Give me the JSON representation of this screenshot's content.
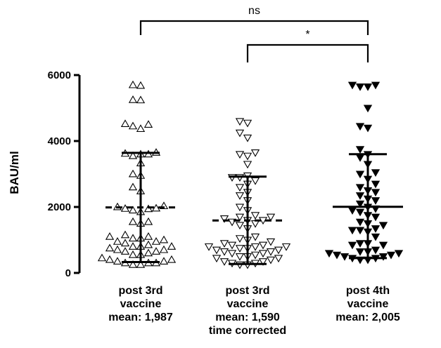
{
  "chart_data": {
    "type": "scatter",
    "ylabel": "BAU/ml",
    "ylim": [
      0,
      6000
    ],
    "yticks": [
      "0",
      "2000",
      "4000",
      "6000"
    ],
    "grid": false,
    "categories": [
      {
        "lines": [
          "post 3rd",
          "vaccine",
          "mean: 1,987"
        ],
        "marker": "triangle-up-open",
        "mean": 1987,
        "mean_style": "dashed",
        "whisker_low": 330,
        "whisker_high": 3640,
        "points": [
          5700,
          5680,
          5250,
          5240,
          4520,
          4500,
          4450,
          4370,
          3650,
          3620,
          3600,
          3600,
          3550,
          3330,
          3000,
          2950,
          2600,
          2480,
          2030,
          2000,
          1960,
          1950,
          1940,
          1900,
          1850,
          1550,
          1550,
          1500,
          1150,
          1100,
          1100,
          1050,
          1050,
          1000,
          950,
          950,
          900,
          850,
          800,
          800,
          800,
          750,
          700,
          700,
          650,
          650,
          600,
          550,
          550,
          450,
          400,
          400,
          350,
          350,
          300,
          300,
          300,
          250,
          250
        ]
      },
      {
        "lines": [
          "post 3rd",
          "vaccine",
          "mean: 1,590",
          "time corrected"
        ],
        "marker": "triangle-down-open",
        "mean": 1590,
        "mean_style": "dashed",
        "whisker_low": 270,
        "whisker_high": 2920,
        "points": [
          4600,
          4550,
          4250,
          4100,
          3650,
          3600,
          3550,
          3300,
          2950,
          2900,
          2900,
          2800,
          2700,
          2600,
          2450,
          2350,
          2200,
          2000,
          1900,
          1750,
          1700,
          1700,
          1650,
          1600,
          1600,
          1550,
          1500,
          1450,
          1350,
          1100,
          1050,
          1000,
          950,
          900,
          850,
          850,
          800,
          800,
          800,
          750,
          750,
          700,
          700,
          650,
          650,
          600,
          600,
          550,
          500,
          500,
          450,
          450,
          400,
          350,
          350,
          300,
          300,
          250,
          250
        ]
      },
      {
        "lines": [
          "post 4th",
          "vaccine",
          "mean: 2,005"
        ],
        "marker": "triangle-down-filled",
        "mean": 2005,
        "mean_style": "solid",
        "whisker_low": 450,
        "whisker_high": 3600,
        "points": [
          5700,
          5700,
          5650,
          5650,
          5000,
          4450,
          4400,
          3750,
          3600,
          3500,
          3300,
          3050,
          3000,
          2850,
          2700,
          2600,
          2500,
          2450,
          2350,
          2250,
          2200,
          2100,
          2000,
          1950,
          1900,
          1850,
          1750,
          1700,
          1550,
          1500,
          1450,
          1350,
          1300,
          1300,
          1250,
          1100,
          900,
          900,
          850,
          850,
          700,
          650,
          650,
          600,
          600,
          550,
          550,
          500,
          500,
          450,
          450,
          400,
          400
        ]
      }
    ],
    "comparisons": [
      {
        "from": 0,
        "to": 2,
        "label": "ns"
      },
      {
        "from": 1,
        "to": 2,
        "label": "*"
      }
    ]
  }
}
